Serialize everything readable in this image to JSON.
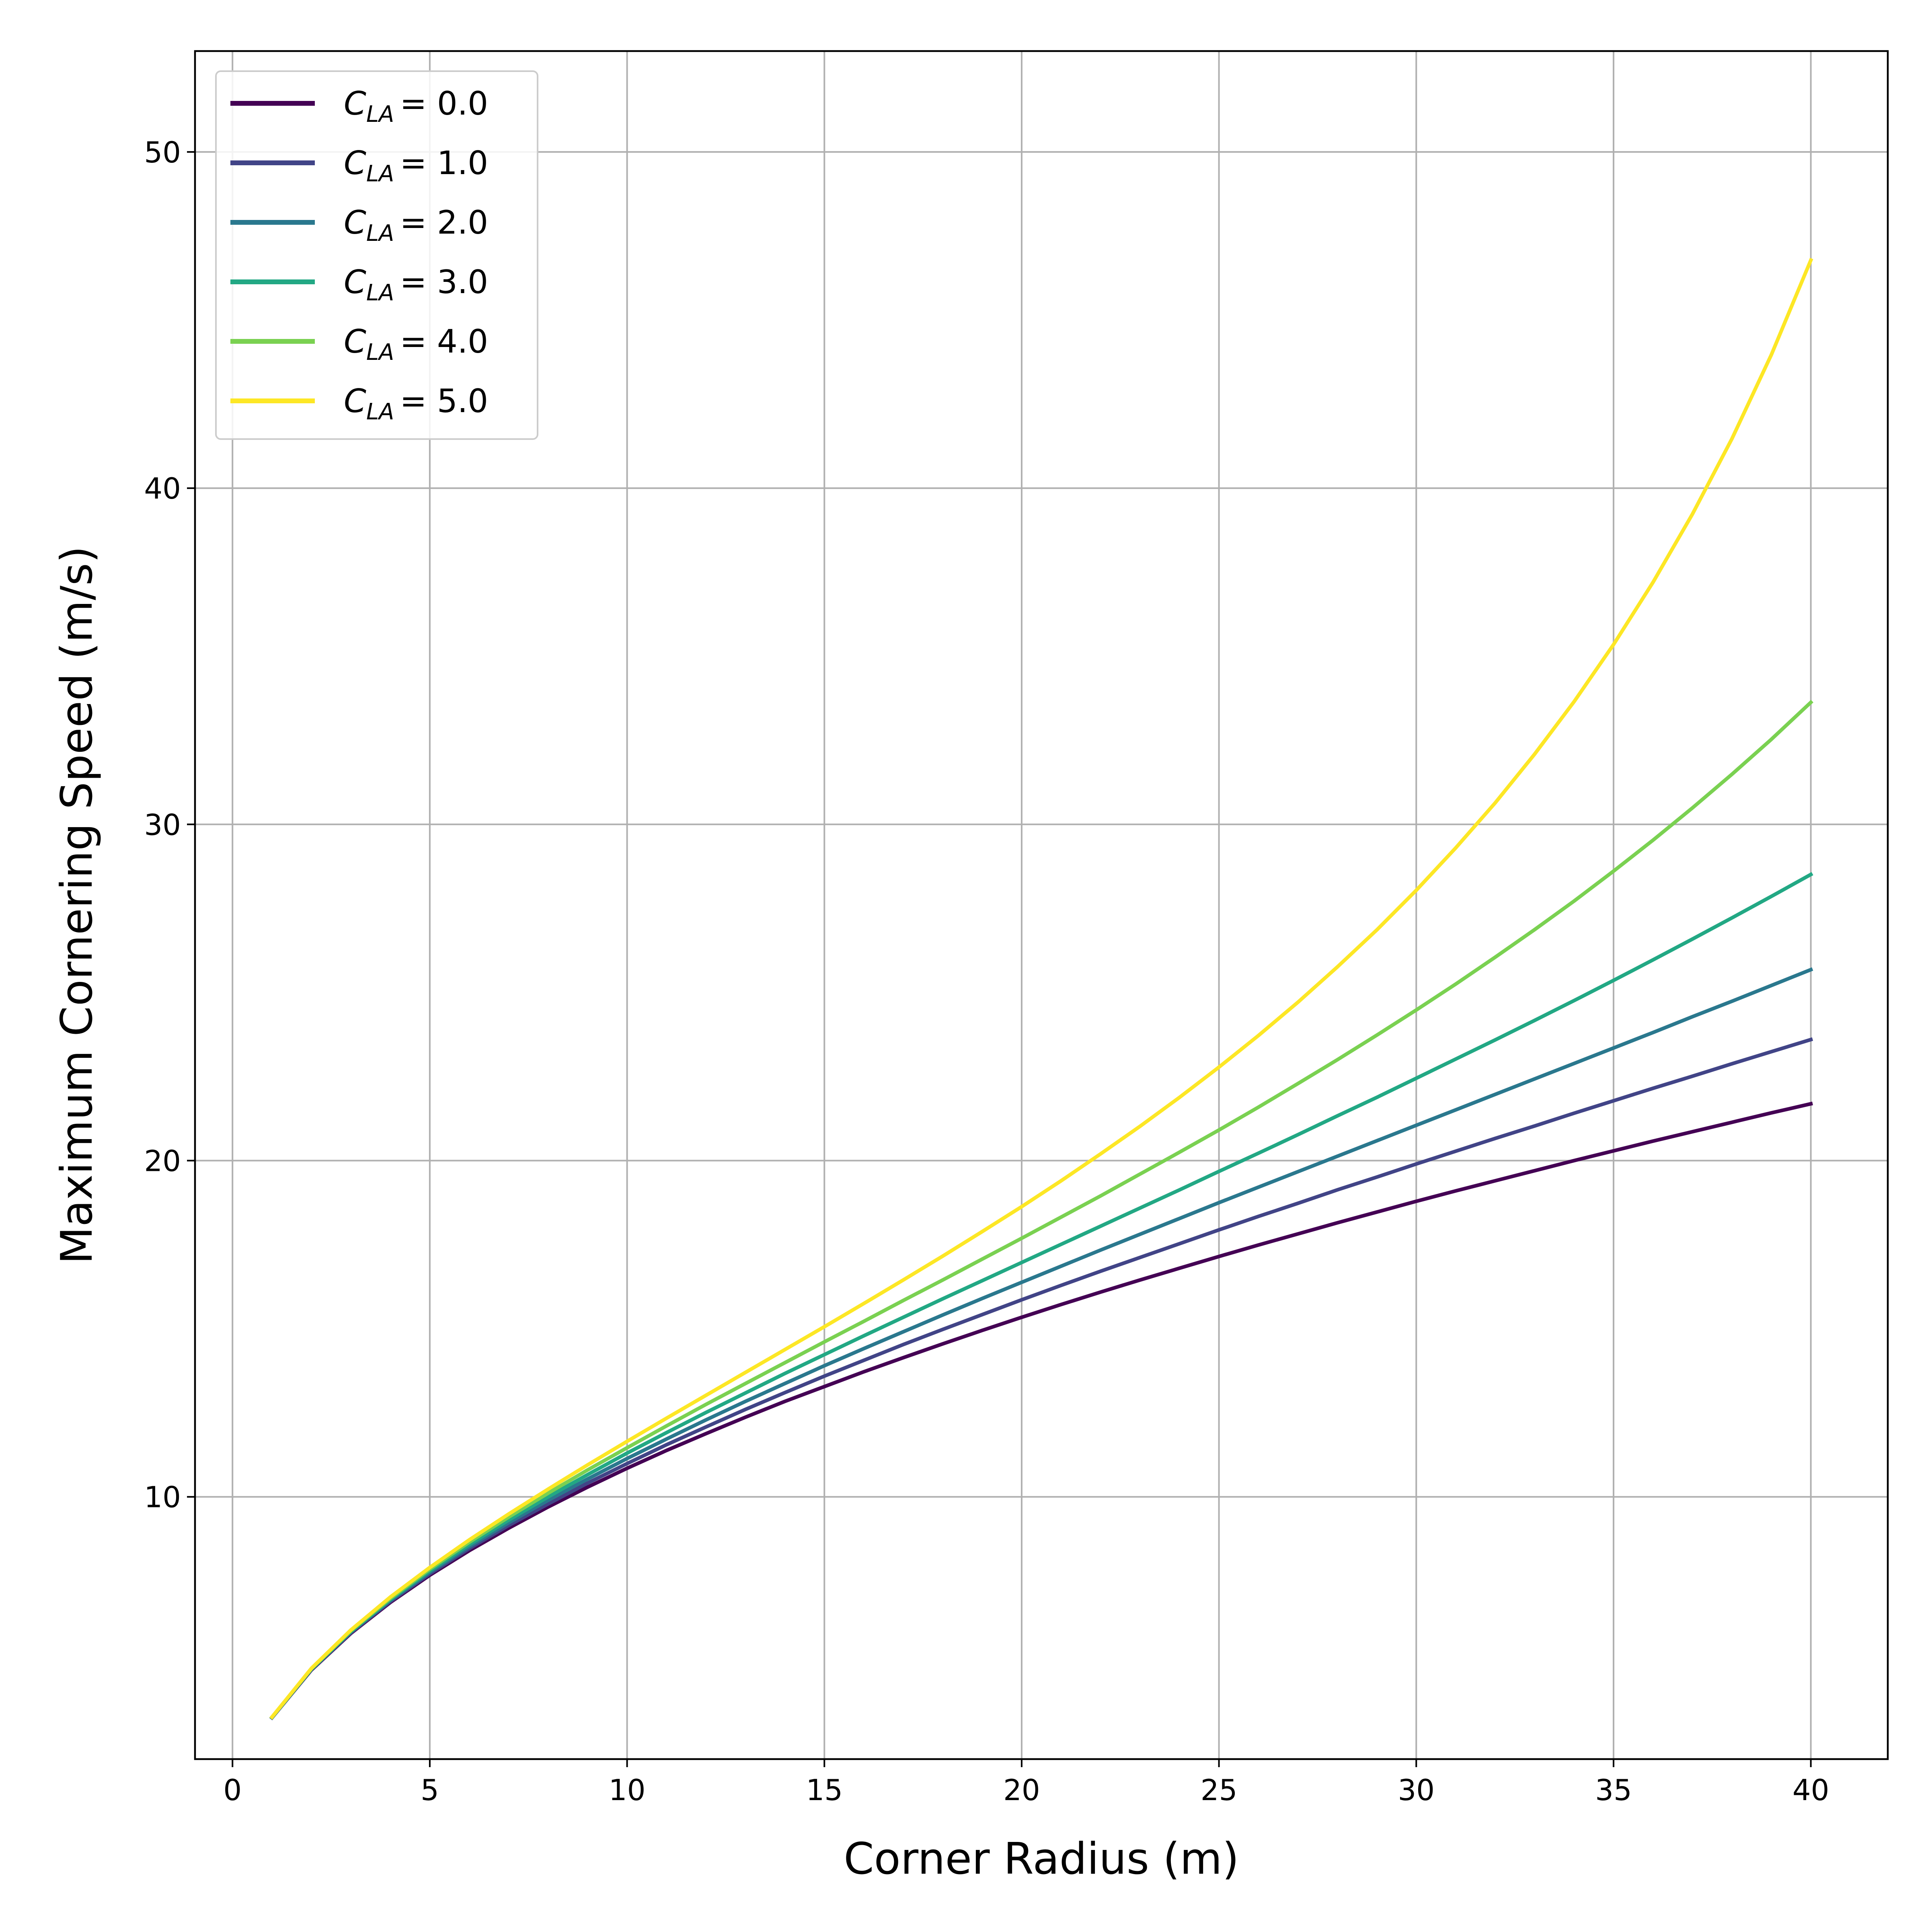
{
  "chart_data": {
    "type": "line",
    "title": "",
    "xlabel": "Corner Radius (m)",
    "ylabel": "Maximum Cornering Speed (m/s)",
    "xlim": [
      -0.95,
      41.95
    ],
    "ylim": [
      2.2,
      53.0
    ],
    "xticks": [
      "0",
      "5",
      "10",
      "15",
      "20",
      "25",
      "30",
      "35",
      "40"
    ],
    "yticks": [
      "10",
      "20",
      "30",
      "40",
      "50"
    ],
    "grid": true,
    "legend_position": "top-left",
    "x": [
      1,
      2,
      3,
      4,
      5,
      6,
      7,
      8,
      9,
      10,
      11,
      12,
      13,
      14,
      15,
      16,
      17,
      18,
      19,
      20,
      21,
      22,
      23,
      24,
      25,
      26,
      27,
      28,
      29,
      30,
      31,
      32,
      33,
      34,
      35,
      36,
      37,
      38,
      39,
      40
    ],
    "series": [
      {
        "name": "C_LA = 0.0",
        "label_var": "C",
        "label_sub": "LA",
        "label_value": "= 0.0",
        "color": "#440154",
        "values": [
          3.43,
          4.85,
          5.94,
          6.86,
          7.67,
          8.4,
          9.07,
          9.7,
          10.29,
          10.85,
          11.38,
          11.88,
          12.37,
          12.84,
          13.28,
          13.72,
          14.14,
          14.55,
          14.95,
          15.34,
          15.72,
          16.09,
          16.45,
          16.8,
          17.15,
          17.49,
          17.82,
          18.15,
          18.47,
          18.79,
          19.1,
          19.4,
          19.7,
          20.0,
          20.29,
          20.58,
          20.86,
          21.14,
          21.42,
          21.69
        ]
      },
      {
        "name": "C_LA = 1.0",
        "label_var": "C",
        "label_sub": "LA",
        "label_value": "= 1.0",
        "color": "#414487",
        "values": [
          3.43,
          4.86,
          5.96,
          6.89,
          7.71,
          8.46,
          9.15,
          9.79,
          10.41,
          10.99,
          11.55,
          12.08,
          12.6,
          13.1,
          13.59,
          14.06,
          14.53,
          14.98,
          15.42,
          15.86,
          16.29,
          16.71,
          17.12,
          17.53,
          17.94,
          18.34,
          18.73,
          19.13,
          19.51,
          19.9,
          20.28,
          20.66,
          21.03,
          21.41,
          21.78,
          22.15,
          22.51,
          22.88,
          23.24,
          23.6
        ]
      },
      {
        "name": "C_LA = 2.0",
        "label_var": "C",
        "label_sub": "LA",
        "label_value": "= 2.0",
        "color": "#2a788e",
        "values": [
          3.44,
          4.87,
          5.98,
          6.92,
          7.76,
          8.52,
          9.23,
          9.9,
          10.53,
          11.14,
          11.72,
          12.29,
          12.84,
          13.37,
          13.9,
          14.41,
          14.91,
          15.41,
          15.9,
          16.38,
          16.86,
          17.34,
          17.81,
          18.28,
          18.75,
          19.21,
          19.67,
          20.13,
          20.59,
          21.05,
          21.51,
          21.97,
          22.43,
          22.89,
          23.35,
          23.81,
          24.28,
          24.74,
          25.21,
          25.68
        ]
      },
      {
        "name": "C_LA = 3.0",
        "label_var": "C",
        "label_sub": "LA",
        "label_value": "= 3.0",
        "color": "#22a884",
        "values": [
          3.44,
          4.88,
          6.0,
          6.95,
          7.8,
          8.58,
          9.31,
          10.0,
          10.66,
          11.3,
          11.91,
          12.51,
          13.09,
          13.67,
          14.23,
          14.79,
          15.34,
          15.89,
          16.43,
          16.97,
          17.51,
          18.05,
          18.59,
          19.13,
          19.68,
          20.22,
          20.77,
          21.33,
          21.88,
          22.45,
          23.02,
          23.59,
          24.17,
          24.76,
          25.36,
          25.97,
          26.59,
          27.22,
          27.86,
          28.51
        ]
      },
      {
        "name": "C_LA = 4.0",
        "label_var": "C",
        "label_sub": "LA",
        "label_value": "= 4.0",
        "color": "#7ad151",
        "values": [
          3.45,
          4.89,
          6.02,
          6.98,
          7.85,
          8.65,
          9.4,
          10.11,
          10.8,
          11.46,
          12.11,
          12.75,
          13.37,
          13.99,
          14.61,
          15.22,
          15.84,
          16.45,
          17.07,
          17.69,
          18.32,
          18.95,
          19.6,
          20.25,
          20.91,
          21.59,
          22.29,
          23.0,
          23.73,
          24.48,
          25.25,
          26.05,
          26.87,
          27.72,
          28.61,
          29.53,
          30.49,
          31.49,
          32.53,
          33.63
        ]
      },
      {
        "name": "C_LA = 5.0",
        "label_var": "C",
        "label_sub": "LA",
        "label_value": "= 5.0",
        "color": "#fde725",
        "values": [
          3.45,
          4.9,
          6.04,
          7.02,
          7.9,
          8.72,
          9.49,
          10.23,
          10.95,
          11.65,
          12.34,
          13.02,
          13.7,
          14.38,
          15.06,
          15.75,
          16.45,
          17.16,
          17.89,
          18.63,
          19.4,
          20.2,
          21.02,
          21.88,
          22.78,
          23.72,
          24.71,
          25.76,
          26.86,
          28.04,
          29.3,
          30.64,
          32.09,
          33.65,
          35.35,
          37.2,
          39.23,
          41.47,
          43.97,
          46.78
        ]
      }
    ]
  }
}
